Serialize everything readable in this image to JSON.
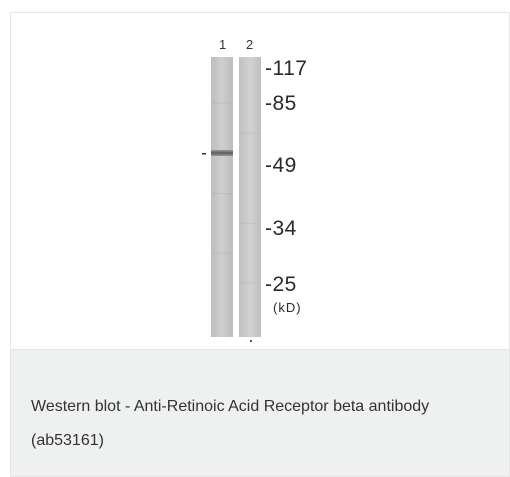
{
  "figure": {
    "lanes": [
      {
        "label": "1"
      },
      {
        "label": "2"
      }
    ],
    "markers": [
      {
        "label": "-117"
      },
      {
        "label": "-85"
      },
      {
        "label": "-49"
      },
      {
        "label": "-34"
      },
      {
        "label": "-25"
      }
    ],
    "unit_label": "(kD)",
    "band_indicator": "-",
    "colors": {
      "lane_fill": "#c9c9c9",
      "band": "#6e6e6e",
      "caption_bg": "#eff0f0"
    }
  },
  "caption": {
    "text": "Western blot - Anti-Retinoic Acid Receptor beta antibody (ab53161)"
  }
}
